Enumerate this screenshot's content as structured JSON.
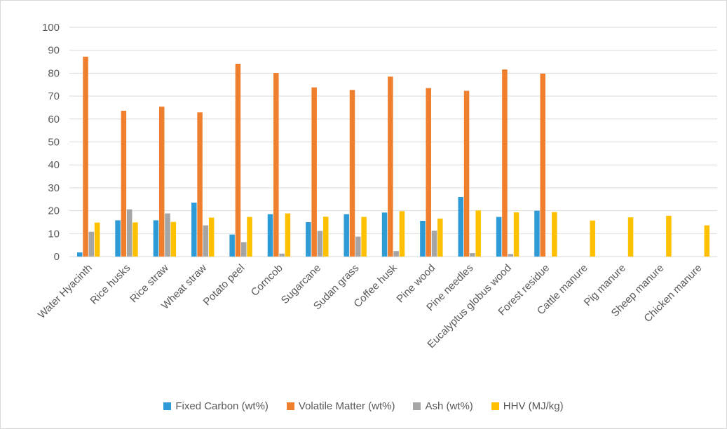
{
  "chart_data": {
    "type": "bar",
    "title": "",
    "xlabel": "",
    "ylabel": "",
    "ylim": [
      0,
      100
    ],
    "yticks": [
      0,
      10,
      20,
      30,
      40,
      50,
      60,
      70,
      80,
      90,
      100
    ],
    "grid": true,
    "legend_position": "bottom",
    "categories": [
      "Water Hyacinth",
      "Rice husks",
      "Rice straw",
      "Wheat straw",
      "Potato peel",
      "Corncob",
      "Sugarcane",
      "Sudan grass",
      "Coffee husk",
      "Pine wood",
      "Pine needles",
      "Eucalyptus globus wood",
      "Forest residue",
      "Cattle manure",
      "Pig manure",
      "Sheep manure",
      "Chicken manure"
    ],
    "series": [
      {
        "name": "Fixed Carbon (wt%)",
        "color": "#2E9BD6",
        "values": [
          1.8,
          15.8,
          15.8,
          23.5,
          9.6,
          18.5,
          15.0,
          18.5,
          19.2,
          15.6,
          26.0,
          17.3,
          20.0,
          null,
          null,
          null,
          null
        ]
      },
      {
        "name": "Volatile Matter (wt%)",
        "color": "#F07F2D",
        "values": [
          87.2,
          63.6,
          65.4,
          62.9,
          84.1,
          80.1,
          73.8,
          72.7,
          78.5,
          73.5,
          72.3,
          81.6,
          79.8,
          null,
          null,
          null,
          null
        ]
      },
      {
        "name": "Ash (wt%)",
        "color": "#A5A5A5",
        "values": [
          10.8,
          20.6,
          18.8,
          13.6,
          6.3,
          1.3,
          11.2,
          8.7,
          2.4,
          11.3,
          1.5,
          1.1,
          null,
          null,
          null,
          null,
          null
        ]
      },
      {
        "name": "HHV (MJ/kg)",
        "color": "#FFC000",
        "values": [
          14.8,
          14.9,
          15.1,
          17.0,
          17.3,
          18.8,
          17.4,
          17.3,
          19.8,
          16.6,
          20.1,
          19.3,
          19.4,
          15.7,
          17.1,
          17.8,
          13.6
        ]
      }
    ]
  }
}
